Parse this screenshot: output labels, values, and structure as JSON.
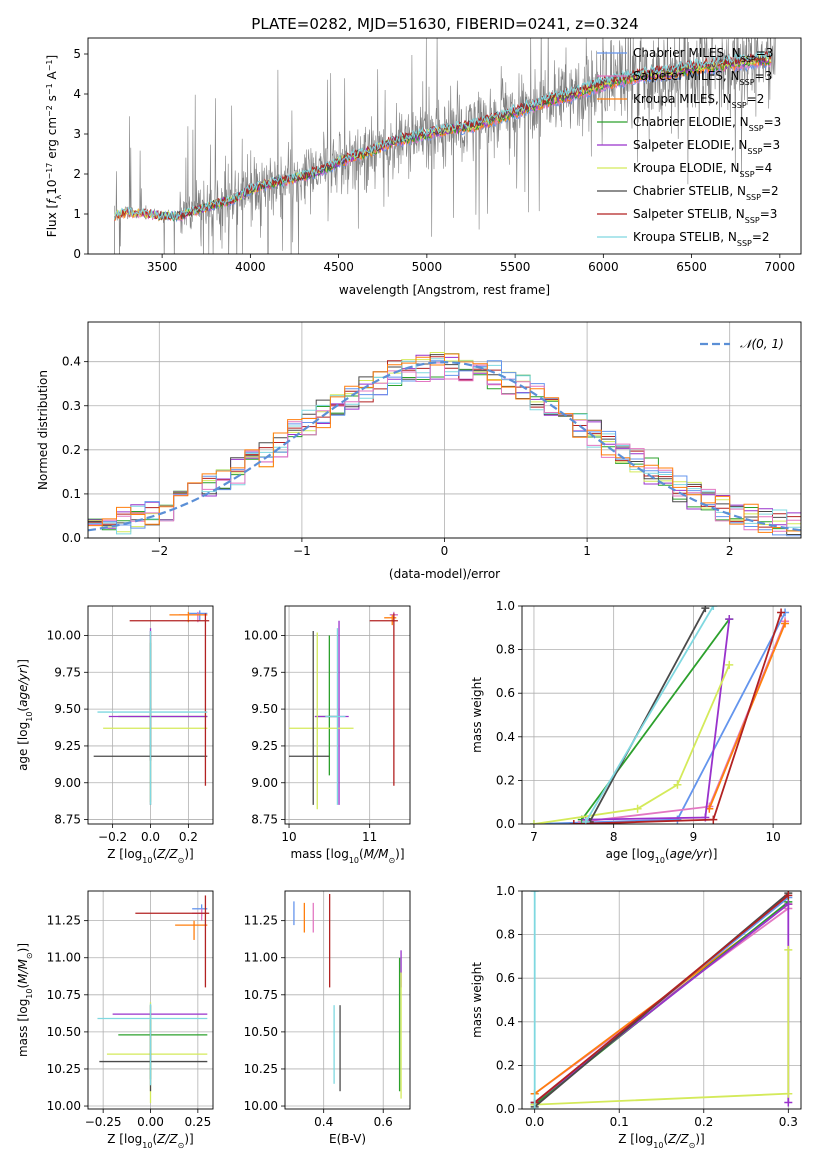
{
  "figure_title": "PLATE=0282, MJD=51630, FIBERID=0241, z=0.324",
  "colors": {
    "Chabrier MILES": "#6495ed",
    "Salpeter MILES": "#e377c2",
    "Kroupa MILES": "#ff7f0e",
    "Chabrier ELODIE": "#2ca02c",
    "Salpeter ELODIE": "#9932cc",
    "Kroupa ELODIE": "#d4ea5a",
    "Chabrier STELIB": "#4a4a4a",
    "Salpeter STELIB": "#b22222",
    "Kroupa STELIB": "#7fd8e0",
    "data": "#808080",
    "normal": "#5b8fd6"
  },
  "chart_data": [
    {
      "id": "spectrum",
      "type": "line",
      "title": "PLATE=0282, MJD=51630, FIBERID=0241, z=0.324",
      "xlabel": "wavelength [Angstrom, rest frame]",
      "ylabel": "Flux [f_λ 10^-17 erg cm^-2 s^-1 A^-1]",
      "xlim": [
        3080,
        7120
      ],
      "ylim": [
        0,
        5.4
      ],
      "xticks": [
        "3500",
        "4000",
        "4500",
        "5000",
        "5500",
        "6000",
        "6500",
        "7000"
      ],
      "yticks": [
        "0",
        "1",
        "2",
        "3",
        "4",
        "5"
      ],
      "legend_position": "top-right",
      "legend": [
        {
          "label": "Chabrier MILES, N",
          "sub": "SSP",
          "suffix": "=3"
        },
        {
          "label": "Salpeter MILES, N",
          "sub": "SSP",
          "suffix": "=3"
        },
        {
          "label": "Kroupa MILES, N",
          "sub": "SSP",
          "suffix": "=2"
        },
        {
          "label": "Chabrier ELODIE, N",
          "sub": "SSP",
          "suffix": "=3"
        },
        {
          "label": "Salpeter ELODIE, N",
          "sub": "SSP",
          "suffix": "=3"
        },
        {
          "label": "Kroupa ELODIE, N",
          "sub": "SSP",
          "suffix": "=4"
        },
        {
          "label": "Chabrier STELIB, N",
          "sub": "SSP",
          "suffix": "=2"
        },
        {
          "label": "Salpeter STELIB, N",
          "sub": "SSP",
          "suffix": "=3"
        },
        {
          "label": "Kroupa STELIB, N",
          "sub": "SSP",
          "suffix": "=2"
        }
      ],
      "data_range": [
        3230,
        6980
      ],
      "continuum": [
        [
          3230,
          0.95
        ],
        [
          3300,
          1.05
        ],
        [
          3400,
          1.0
        ],
        [
          3500,
          0.95
        ],
        [
          3600,
          0.95
        ],
        [
          3700,
          1.1
        ],
        [
          3800,
          1.25
        ],
        [
          3900,
          1.35
        ],
        [
          4000,
          1.6
        ],
        [
          4100,
          1.75
        ],
        [
          4200,
          1.85
        ],
        [
          4300,
          1.95
        ],
        [
          4400,
          2.1
        ],
        [
          4500,
          2.3
        ],
        [
          4600,
          2.45
        ],
        [
          4700,
          2.6
        ],
        [
          4800,
          2.8
        ],
        [
          4900,
          2.9
        ],
        [
          5000,
          3.0
        ],
        [
          5100,
          3.1
        ],
        [
          5200,
          3.15
        ],
        [
          5300,
          3.25
        ],
        [
          5400,
          3.4
        ],
        [
          5500,
          3.55
        ],
        [
          5600,
          3.7
        ],
        [
          5700,
          3.85
        ],
        [
          5800,
          3.95
        ],
        [
          5900,
          4.1
        ],
        [
          6000,
          4.25
        ],
        [
          6100,
          4.35
        ],
        [
          6200,
          4.45
        ],
        [
          6300,
          4.5
        ],
        [
          6400,
          4.55
        ],
        [
          6500,
          4.65
        ],
        [
          6600,
          4.7
        ],
        [
          6700,
          4.75
        ],
        [
          6800,
          4.8
        ],
        [
          6900,
          4.85
        ],
        [
          7000,
          4.9
        ]
      ]
    },
    {
      "id": "residuals",
      "type": "step",
      "xlabel": "(data-model)/error",
      "ylabel": "Normed distribution",
      "xlim": [
        -2.5,
        2.5
      ],
      "ylim": [
        0,
        0.49
      ],
      "xticks": [
        "-2",
        "-1",
        "0",
        "1",
        "2"
      ],
      "yticks": [
        "0.0",
        "0.1",
        "0.2",
        "0.3",
        "0.4"
      ],
      "legend_position": "top-right",
      "legend_label": "𝒩(0, 1)",
      "bin_width": 0.1,
      "grid": true
    },
    {
      "id": "age-vs-Z",
      "type": "errorbar",
      "xlabel": "Z [log10(Z/Z⊙)]",
      "ylabel": "age [log10(age/yr)]",
      "xlim": [
        -0.33,
        0.33
      ],
      "ylim": [
        8.72,
        10.2
      ],
      "xticks": [
        "-0.2",
        "0.0",
        "0.2"
      ],
      "yticks": [
        "8.75",
        "9.00",
        "9.25",
        "9.50",
        "9.75",
        "10.00"
      ],
      "points": [
        {
          "model": "Chabrier MILES",
          "x": 0.26,
          "xerr": [
            0.06,
            0.04
          ],
          "y": 10.15,
          "yerr": [
            0.05,
            0.02
          ]
        },
        {
          "model": "Salpeter MILES",
          "x": 0.25,
          "xerr": [
            0.1,
            0.05
          ],
          "y": 10.14,
          "yerr": [
            0.05,
            0.02
          ]
        },
        {
          "model": "Kroupa MILES",
          "x": 0.2,
          "xerr": [
            0.1,
            0.1
          ],
          "y": 10.14,
          "yerr": [
            0.05,
            0.02
          ]
        },
        {
          "model": "Chabrier ELODIE",
          "x": 0.0,
          "xerr": [
            0.17,
            0.3
          ],
          "y": 9.45,
          "yerr": [
            0.3,
            0.5
          ]
        },
        {
          "model": "Salpeter ELODIE",
          "x": 0.0,
          "xerr": [
            0.22,
            0.3
          ],
          "y": 9.45,
          "yerr": [
            0.3,
            0.6
          ]
        },
        {
          "model": "Kroupa ELODIE",
          "x": 0.0,
          "xerr": [
            0.25,
            0.3
          ],
          "y": 9.37,
          "yerr": [
            0.5,
            0.6
          ]
        },
        {
          "model": "Chabrier STELIB",
          "x": 0.0,
          "xerr": [
            0.3,
            0.3
          ],
          "y": 9.18,
          "yerr": [
            0.33,
            0.85
          ]
        },
        {
          "model": "Salpeter STELIB",
          "x": 0.29,
          "xerr": [
            0.4,
            0.02
          ],
          "y": 10.1,
          "yerr": [
            1.12,
            0.05
          ]
        },
        {
          "model": "Kroupa STELIB",
          "x": 0.0,
          "xerr": [
            0.28,
            0.3
          ],
          "y": 9.48,
          "yerr": [
            0.63,
            0.55
          ]
        }
      ]
    },
    {
      "id": "age-vs-mass",
      "type": "errorbar",
      "xlabel": "mass [log10(M/M⊙)]",
      "ylabel": "",
      "xlim": [
        9.95,
        11.5
      ],
      "ylim": [
        8.72,
        10.2
      ],
      "xticks": [
        "10",
        "11"
      ],
      "yticks": [
        "8.75",
        "9.00",
        "9.25",
        "9.50",
        "9.75",
        "10.00"
      ],
      "points": [
        {
          "model": "Chabrier MILES",
          "x": 11.3,
          "xerr": [
            0.05,
            0.05
          ],
          "y": 10.14,
          "yerr": [
            0.05,
            0.02
          ]
        },
        {
          "model": "Salpeter MILES",
          "x": 11.3,
          "xerr": [
            0.05,
            0.05
          ],
          "y": 10.14,
          "yerr": [
            0.05,
            0.02
          ]
        },
        {
          "model": "Kroupa MILES",
          "x": 11.28,
          "xerr": [
            0.1,
            0.05
          ],
          "y": 10.12,
          "yerr": [
            0.05,
            0.02
          ]
        },
        {
          "model": "Chabrier ELODIE",
          "x": 10.5,
          "xerr": [
            0.17,
            0.1
          ],
          "y": 9.45,
          "yerr": [
            0.4,
            0.55
          ]
        },
        {
          "model": "Salpeter ELODIE",
          "x": 10.62,
          "xerr": [
            0.3,
            0.12
          ],
          "y": 9.45,
          "yerr": [
            0.6,
            0.65
          ]
        },
        {
          "model": "Kroupa ELODIE",
          "x": 10.35,
          "xerr": [
            0.35,
            0.45
          ],
          "y": 9.37,
          "yerr": [
            0.55,
            0.65
          ]
        },
        {
          "model": "Chabrier STELIB",
          "x": 10.3,
          "xerr": [
            0.3,
            0.2
          ],
          "y": 9.18,
          "yerr": [
            0.33,
            0.85
          ]
        },
        {
          "model": "Salpeter STELIB",
          "x": 11.3,
          "xerr": [
            0.3,
            0.05
          ],
          "y": 10.1,
          "yerr": [
            1.12,
            0.05
          ]
        },
        {
          "model": "Kroupa STELIB",
          "x": 10.6,
          "xerr": [
            0.15,
            0.1
          ],
          "y": 9.45,
          "yerr": [
            0.6,
            0.6
          ]
        }
      ]
    },
    {
      "id": "weight-vs-age",
      "type": "line",
      "xlabel": "age [log10(age/yr)]",
      "ylabel": "mass weight",
      "xlim": [
        6.85,
        10.35
      ],
      "ylim": [
        0,
        1.0
      ],
      "xticks": [
        "7",
        "8",
        "9",
        "10"
      ],
      "yticks": [
        "0.0",
        "0.2",
        "0.4",
        "0.6",
        "0.8",
        "1.0"
      ],
      "series": [
        {
          "model": "Chabrier MILES",
          "x": [
            7.0,
            8.8,
            10.15
          ],
          "y": [
            0.0,
            0.02,
            0.97
          ]
        },
        {
          "model": "Salpeter MILES",
          "x": [
            7.6,
            9.2,
            10.15
          ],
          "y": [
            0.01,
            0.08,
            0.93
          ]
        },
        {
          "model": "Kroupa MILES",
          "x": [
            9.2,
            10.15
          ],
          "y": [
            0.07,
            0.92
          ]
        },
        {
          "model": "Chabrier ELODIE",
          "x": [
            7.6,
            9.45
          ],
          "y": [
            0.02,
            0.94
          ]
        },
        {
          "model": "Salpeter ELODIE",
          "x": [
            7.65,
            9.15,
            9.45
          ],
          "y": [
            0.02,
            0.03,
            0.94
          ]
        },
        {
          "model": "Kroupa ELODIE",
          "x": [
            7.0,
            8.3,
            8.8,
            9.45
          ],
          "y": [
            0.0,
            0.07,
            0.18,
            0.73
          ]
        },
        {
          "model": "Chabrier STELIB",
          "x": [
            7.7,
            9.15
          ],
          "y": [
            0.01,
            0.99
          ]
        },
        {
          "model": "Salpeter STELIB",
          "x": [
            7.5,
            9.25,
            10.1
          ],
          "y": [
            0.0,
            0.02,
            0.97
          ]
        },
        {
          "model": "Kroupa STELIB",
          "x": [
            7.65,
            9.25
          ],
          "y": [
            0.01,
            1.0
          ]
        }
      ]
    },
    {
      "id": "mass-vs-Z",
      "type": "errorbar",
      "xlabel": "Z [log10(Z/Z⊙)]",
      "ylabel": "mass [log10(M/M⊙)]",
      "xlim": [
        -0.33,
        0.33
      ],
      "ylim": [
        9.98,
        11.45
      ],
      "xticks": [
        "-0.25",
        "0.00",
        "0.25"
      ],
      "yticks": [
        "10.00",
        "10.25",
        "10.50",
        "10.75",
        "11.00",
        "11.25"
      ],
      "points": [
        {
          "model": "Chabrier MILES",
          "x": 0.27,
          "xerr": [
            0.05,
            0.03
          ],
          "y": 11.33,
          "yerr": [
            0.05,
            0.03
          ]
        },
        {
          "model": "Salpeter MILES",
          "x": 0.27,
          "xerr": [
            0.05,
            0.03
          ],
          "y": 11.3,
          "yerr": [
            0.05,
            0.03
          ]
        },
        {
          "model": "Kroupa MILES",
          "x": 0.23,
          "xerr": [
            0.1,
            0.07
          ],
          "y": 11.22,
          "yerr": [
            0.1,
            0.03
          ]
        },
        {
          "model": "Chabrier ELODIE",
          "x": 0.0,
          "xerr": [
            0.17,
            0.3
          ],
          "y": 10.48,
          "yerr": [
            0.3,
            0.1
          ]
        },
        {
          "model": "Salpeter ELODIE",
          "x": 0.0,
          "xerr": [
            0.2,
            0.3
          ],
          "y": 10.62,
          "yerr": [
            0.0,
            0.0
          ]
        },
        {
          "model": "Kroupa ELODIE",
          "x": 0.0,
          "xerr": [
            0.23,
            0.3
          ],
          "y": 10.35,
          "yerr": [
            0.33,
            0.35
          ]
        },
        {
          "model": "Chabrier STELIB",
          "x": 0.0,
          "xerr": [
            0.27,
            0.3
          ],
          "y": 10.3,
          "yerr": [
            0.2,
            0.38
          ]
        },
        {
          "model": "Salpeter STELIB",
          "x": 0.29,
          "xerr": [
            0.37,
            0.02
          ],
          "y": 11.3,
          "yerr": [
            0.5,
            0.12
          ]
        },
        {
          "model": "Kroupa STELIB",
          "x": 0.0,
          "xerr": [
            0.28,
            0.3
          ],
          "y": 10.59,
          "yerr": [
            0.45,
            0.1
          ]
        }
      ]
    },
    {
      "id": "mass-vs-EBV",
      "type": "errorbar",
      "xlabel": "E(B-V)",
      "ylabel": "",
      "xlim": [
        0.27,
        0.69
      ],
      "ylim": [
        9.98,
        11.45
      ],
      "xticks": [
        "0.4",
        "0.6"
      ],
      "yticks": [
        "10.00",
        "10.25",
        "10.50",
        "10.75",
        "11.00",
        "11.25"
      ],
      "points": [
        {
          "model": "Chabrier MILES",
          "x": 0.3,
          "y": 11.3,
          "yerr": [
            0.08,
            0.08
          ]
        },
        {
          "model": "Salpeter MILES",
          "x": 0.365,
          "y": 11.27,
          "yerr": [
            0.1,
            0.1
          ]
        },
        {
          "model": "Kroupa MILES",
          "x": 0.335,
          "y": 11.27,
          "yerr": [
            0.1,
            0.1
          ]
        },
        {
          "model": "Chabrier ELODIE",
          "x": 0.655,
          "y": 10.5,
          "yerr": [
            0.4,
            0.5
          ]
        },
        {
          "model": "Salpeter ELODIE",
          "x": 0.66,
          "y": 10.9,
          "yerr": [
            0.1,
            0.15
          ]
        },
        {
          "model": "Kroupa ELODIE",
          "x": 0.66,
          "y": 10.6,
          "yerr": [
            0.55,
            0.3
          ]
        },
        {
          "model": "Chabrier STELIB",
          "x": 0.455,
          "y": 10.4,
          "yerr": [
            0.3,
            0.28
          ]
        },
        {
          "model": "Salpeter STELIB",
          "x": 0.42,
          "y": 11.1,
          "yerr": [
            0.3,
            0.33
          ]
        },
        {
          "model": "Kroupa STELIB",
          "x": 0.435,
          "y": 10.4,
          "yerr": [
            0.25,
            0.28
          ]
        }
      ]
    },
    {
      "id": "weight-vs-Z",
      "type": "line",
      "xlabel": "Z [log10(Z/Z⊙)]",
      "ylabel": "mass weight",
      "xlim": [
        -0.015,
        0.315
      ],
      "ylim": [
        0,
        1.0
      ],
      "xticks": [
        "0.0",
        "0.1",
        "0.2",
        "0.3"
      ],
      "yticks": [
        "0.0",
        "0.2",
        "0.4",
        "0.6",
        "0.8",
        "1.0"
      ],
      "series": [
        {
          "model": "Chabrier MILES",
          "x": [
            0.0,
            0.3
          ],
          "y": [
            0.03,
            0.97
          ]
        },
        {
          "model": "Salpeter MILES",
          "x": [
            0.0,
            0.3
          ],
          "y": [
            0.07,
            0.92
          ]
        },
        {
          "model": "Kroupa MILES",
          "x": [
            0.0,
            0.3
          ],
          "y": [
            0.07,
            0.94
          ]
        },
        {
          "model": "Chabrier ELODIE",
          "x": [
            0.0,
            0.3
          ],
          "y": [
            0.02,
            0.95
          ]
        },
        {
          "model": "Salpeter ELODIE",
          "x": [
            0.0,
            0.3,
            0.3
          ],
          "y": [
            0.03,
            0.94,
            0.03
          ]
        },
        {
          "model": "Kroupa ELODIE",
          "x": [
            0.0,
            0.3,
            0.3
          ],
          "y": [
            0.02,
            0.07,
            0.73
          ]
        },
        {
          "model": "Chabrier STELIB",
          "x": [
            0.0,
            0.3
          ],
          "y": [
            0.01,
            0.99
          ]
        },
        {
          "model": "Salpeter STELIB",
          "x": [
            0.0,
            0.3
          ],
          "y": [
            0.03,
            0.98
          ]
        },
        {
          "model": "Kroupa STELIB",
          "x": [
            0.0,
            0.0
          ],
          "y": [
            0.0,
            1.0
          ]
        }
      ]
    }
  ]
}
